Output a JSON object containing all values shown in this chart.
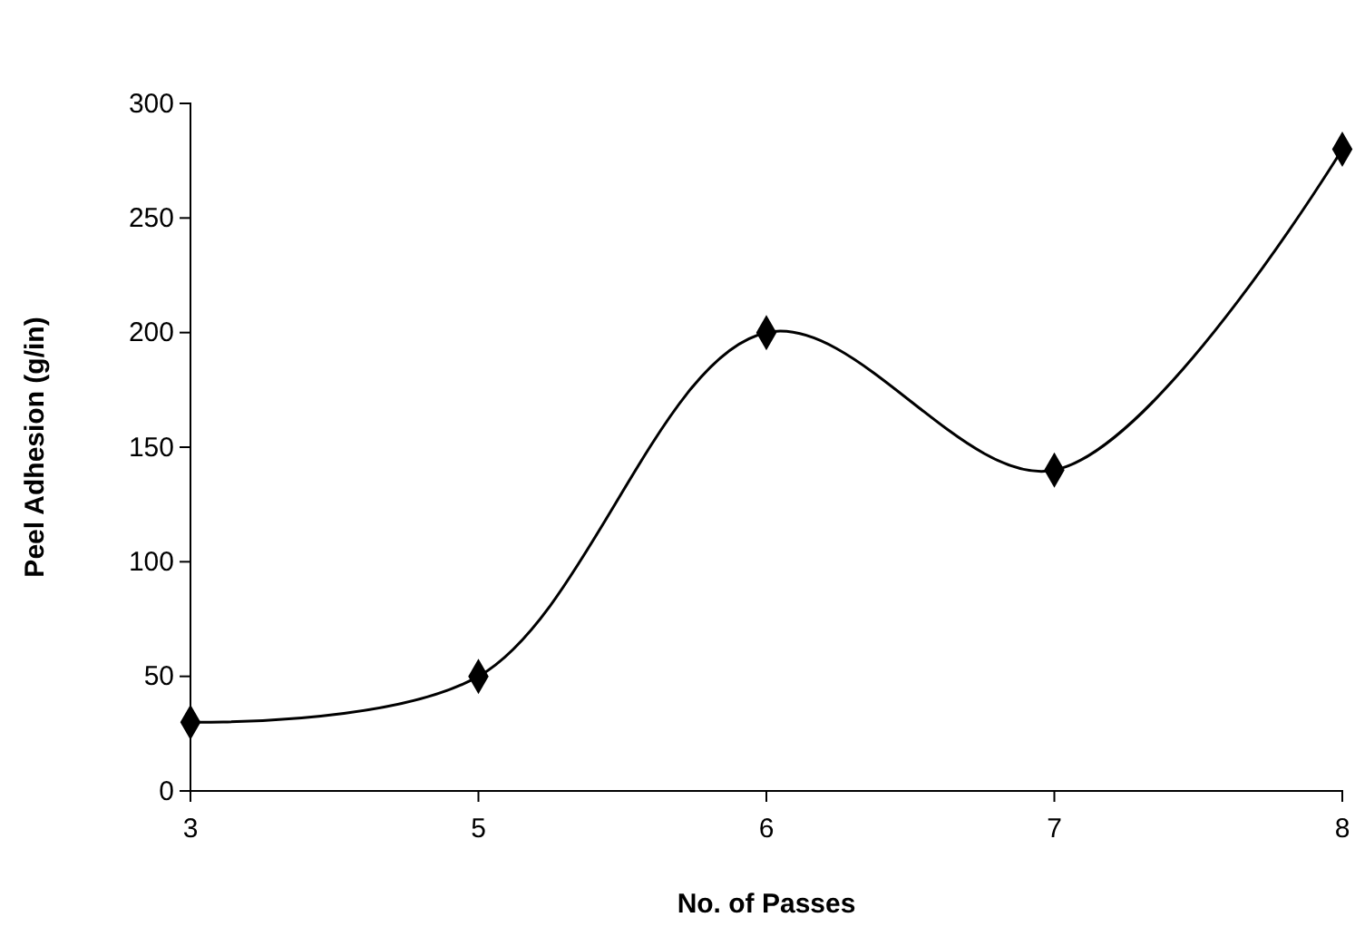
{
  "chart_data": {
    "type": "line",
    "xlabel": "No. of Passes",
    "ylabel": "Peel Adhesion (g/in)",
    "categories": [
      "3",
      "5",
      "6",
      "7",
      "8"
    ],
    "series": [
      {
        "color": "#000000",
        "values": [
          30,
          50,
          200,
          140,
          280
        ]
      }
    ],
    "ylim": [
      0,
      300
    ],
    "yticks": [
      0,
      50,
      100,
      150,
      200,
      250,
      300
    ],
    "grid": false,
    "marker": "diamond",
    "line_style": "solid"
  }
}
